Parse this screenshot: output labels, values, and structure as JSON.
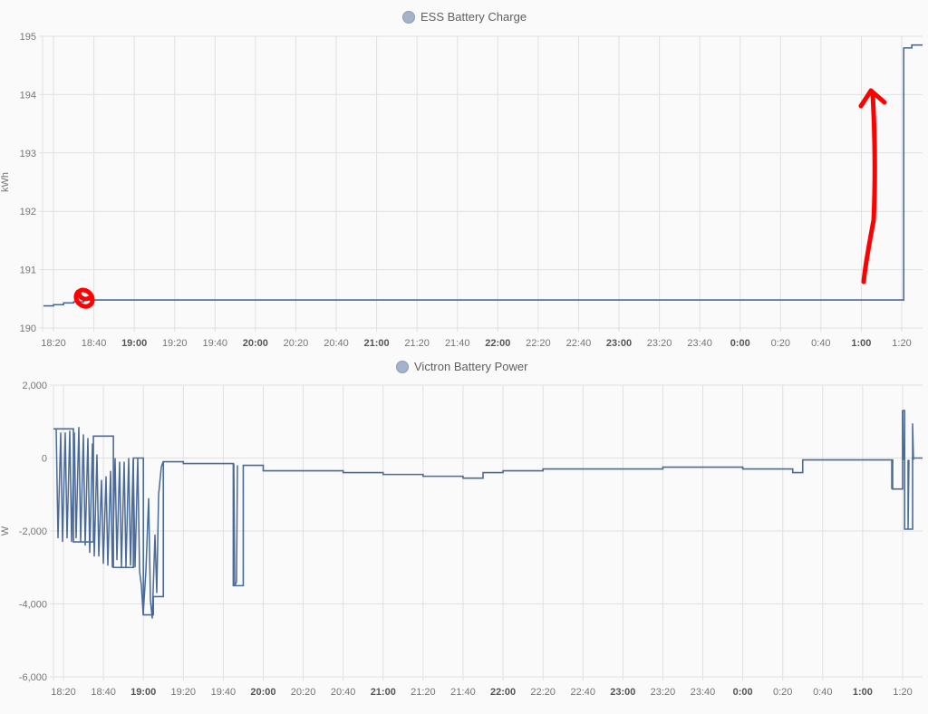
{
  "charts": [
    {
      "id": "ess-battery-charge",
      "legend_label": "ESS Battery Charge",
      "y_unit": "kWh",
      "y_ticks": [
        "195",
        "194",
        "193",
        "192",
        "191",
        "190"
      ],
      "x_ticks": [
        {
          "label": "18:20",
          "bold": false
        },
        {
          "label": "18:40",
          "bold": false
        },
        {
          "label": "19:00",
          "bold": true
        },
        {
          "label": "19:20",
          "bold": false
        },
        {
          "label": "19:40",
          "bold": false
        },
        {
          "label": "20:00",
          "bold": true
        },
        {
          "label": "20:20",
          "bold": false
        },
        {
          "label": "20:40",
          "bold": false
        },
        {
          "label": "21:00",
          "bold": true
        },
        {
          "label": "21:20",
          "bold": false
        },
        {
          "label": "21:40",
          "bold": false
        },
        {
          "label": "22:00",
          "bold": true
        },
        {
          "label": "22:20",
          "bold": false
        },
        {
          "label": "22:40",
          "bold": false
        },
        {
          "label": "23:00",
          "bold": true
        },
        {
          "label": "23:20",
          "bold": false
        },
        {
          "label": "23:40",
          "bold": false
        },
        {
          "label": "0:00",
          "bold": true
        },
        {
          "label": "0:20",
          "bold": false
        },
        {
          "label": "0:40",
          "bold": false
        },
        {
          "label": "1:00",
          "bold": true
        },
        {
          "label": "1:20",
          "bold": false
        }
      ]
    },
    {
      "id": "victron-battery-power",
      "legend_label": "Victron Battery Power",
      "y_unit": "W",
      "y_ticks": [
        "2,000",
        "0",
        "-2,000",
        "-4,000",
        "-6,000"
      ],
      "x_ticks": [
        {
          "label": "18:20",
          "bold": false
        },
        {
          "label": "18:40",
          "bold": false
        },
        {
          "label": "19:00",
          "bold": true
        },
        {
          "label": "19:20",
          "bold": false
        },
        {
          "label": "19:40",
          "bold": false
        },
        {
          "label": "20:00",
          "bold": true
        },
        {
          "label": "20:20",
          "bold": false
        },
        {
          "label": "20:40",
          "bold": false
        },
        {
          "label": "21:00",
          "bold": true
        },
        {
          "label": "21:20",
          "bold": false
        },
        {
          "label": "21:40",
          "bold": false
        },
        {
          "label": "22:00",
          "bold": true
        },
        {
          "label": "22:20",
          "bold": false
        },
        {
          "label": "22:40",
          "bold": false
        },
        {
          "label": "23:00",
          "bold": true
        },
        {
          "label": "23:20",
          "bold": false
        },
        {
          "label": "23:40",
          "bold": false
        },
        {
          "label": "0:00",
          "bold": true
        },
        {
          "label": "0:20",
          "bold": false
        },
        {
          "label": "0:40",
          "bold": false
        },
        {
          "label": "1:00",
          "bold": true
        },
        {
          "label": "1:20",
          "bold": false
        }
      ]
    }
  ],
  "colors": {
    "series_line": "#4a6a99",
    "legend_dot": "#a4b3ca",
    "grid": "#e0e0e0",
    "axis_text": "#757575",
    "annotation_red": "#ff0000"
  },
  "chart_data": [
    {
      "type": "line",
      "title": "ESS Battery Charge",
      "xlabel": "",
      "ylabel": "kWh",
      "ylim": [
        190,
        195
      ],
      "grid": true,
      "legend_position": "top-center",
      "x": [
        "18:15",
        "18:20",
        "18:25",
        "18:30",
        "18:35",
        "18:40",
        "19:00",
        "20:00",
        "21:00",
        "22:00",
        "23:00",
        "0:00",
        "1:00",
        "1:20",
        "1:21",
        "1:25",
        "1:30"
      ],
      "series": [
        {
          "name": "ESS Battery Charge",
          "values": [
            190.38,
            190.4,
            190.43,
            190.45,
            190.48,
            190.48,
            190.48,
            190.48,
            190.48,
            190.48,
            190.48,
            190.48,
            190.48,
            190.48,
            194.8,
            194.85,
            194.85
          ]
        }
      ],
      "annotations": [
        "hand-drawn red circle near 18:35 at ~190.5 kWh",
        "hand-drawn red upward arrow near 1:00 from ~190.8 to ~194.1 kWh"
      ]
    },
    {
      "type": "line",
      "title": "Victron Battery Power",
      "xlabel": "",
      "ylabel": "W",
      "ylim": [
        -6000,
        2000
      ],
      "grid": true,
      "legend_position": "top-center",
      "x": [
        "18:15",
        "18:25",
        "18:35",
        "18:45",
        "18:55",
        "19:00",
        "19:05",
        "19:10",
        "19:20",
        "19:40",
        "19:45",
        "19:50",
        "20:00",
        "20:20",
        "20:40",
        "21:00",
        "21:20",
        "21:40",
        "21:50",
        "22:00",
        "22:20",
        "22:40",
        "23:00",
        "23:20",
        "23:40",
        "0:00",
        "0:20",
        "0:25",
        "0:30",
        "0:40",
        "1:00",
        "1:15",
        "1:20",
        "1:21",
        "1:25",
        "1:30"
      ],
      "series": [
        {
          "name": "Victron Battery Power",
          "values": [
            800,
            -2300,
            600,
            -3000,
            0,
            -4300,
            -3800,
            -100,
            -150,
            -150,
            -3500,
            -200,
            -350,
            -350,
            -400,
            -450,
            -500,
            -550,
            -400,
            -350,
            -300,
            -300,
            -300,
            -250,
            -250,
            -300,
            -300,
            -400,
            -50,
            -50,
            -50,
            -850,
            1300,
            -1950,
            0,
            0
          ]
        }
      ],
      "annotations": []
    }
  ]
}
